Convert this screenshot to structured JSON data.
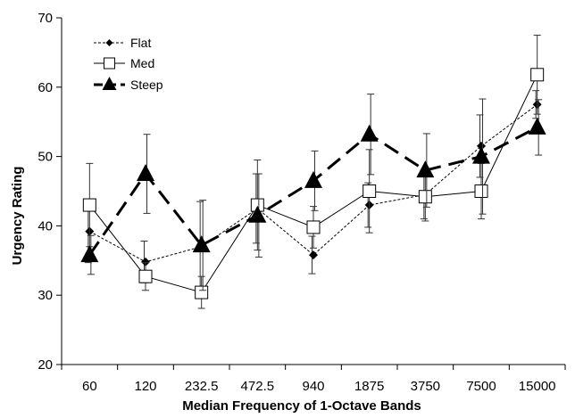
{
  "chart_data": {
    "type": "line",
    "title": "",
    "xlabel": "Median Frequency of 1-Octave Bands",
    "ylabel": "Urgency Rating",
    "ylim": [
      20,
      70
    ],
    "yticks": [
      "20",
      "30",
      "40",
      "50",
      "60",
      "70"
    ],
    "categories": [
      "60",
      "120",
      "232.5",
      "472.5",
      "940",
      "1875",
      "3750",
      "7500",
      "15000"
    ],
    "grid": false,
    "legend_position": "top-left",
    "series": [
      {
        "name": "Flat",
        "style": "dotted-diamond",
        "values": [
          39.2,
          34.8,
          37.0,
          42.5,
          35.8,
          43.0,
          44.5,
          51.5,
          57.5
        ],
        "errors": [
          4.5,
          3.0,
          6.5,
          5.0,
          2.7,
          3.2,
          3.5,
          4.5,
          2.0
        ]
      },
      {
        "name": "Med",
        "style": "solid-square",
        "values": [
          43.0,
          32.7,
          30.4,
          43.0,
          39.8,
          45.0,
          44.2,
          45.0,
          61.8
        ],
        "errors": [
          6.0,
          2.0,
          2.3,
          6.5,
          3.0,
          6.0,
          3.5,
          4.0,
          5.7
        ]
      },
      {
        "name": "Steep",
        "style": "dashed-triangle",
        "values": [
          35.8,
          47.5,
          37.2,
          41.5,
          46.5,
          53.2,
          48.0,
          50.0,
          54.2
        ],
        "errors": [
          2.8,
          5.7,
          6.5,
          6.0,
          4.3,
          5.8,
          5.3,
          8.3,
          4.0
        ]
      }
    ]
  }
}
